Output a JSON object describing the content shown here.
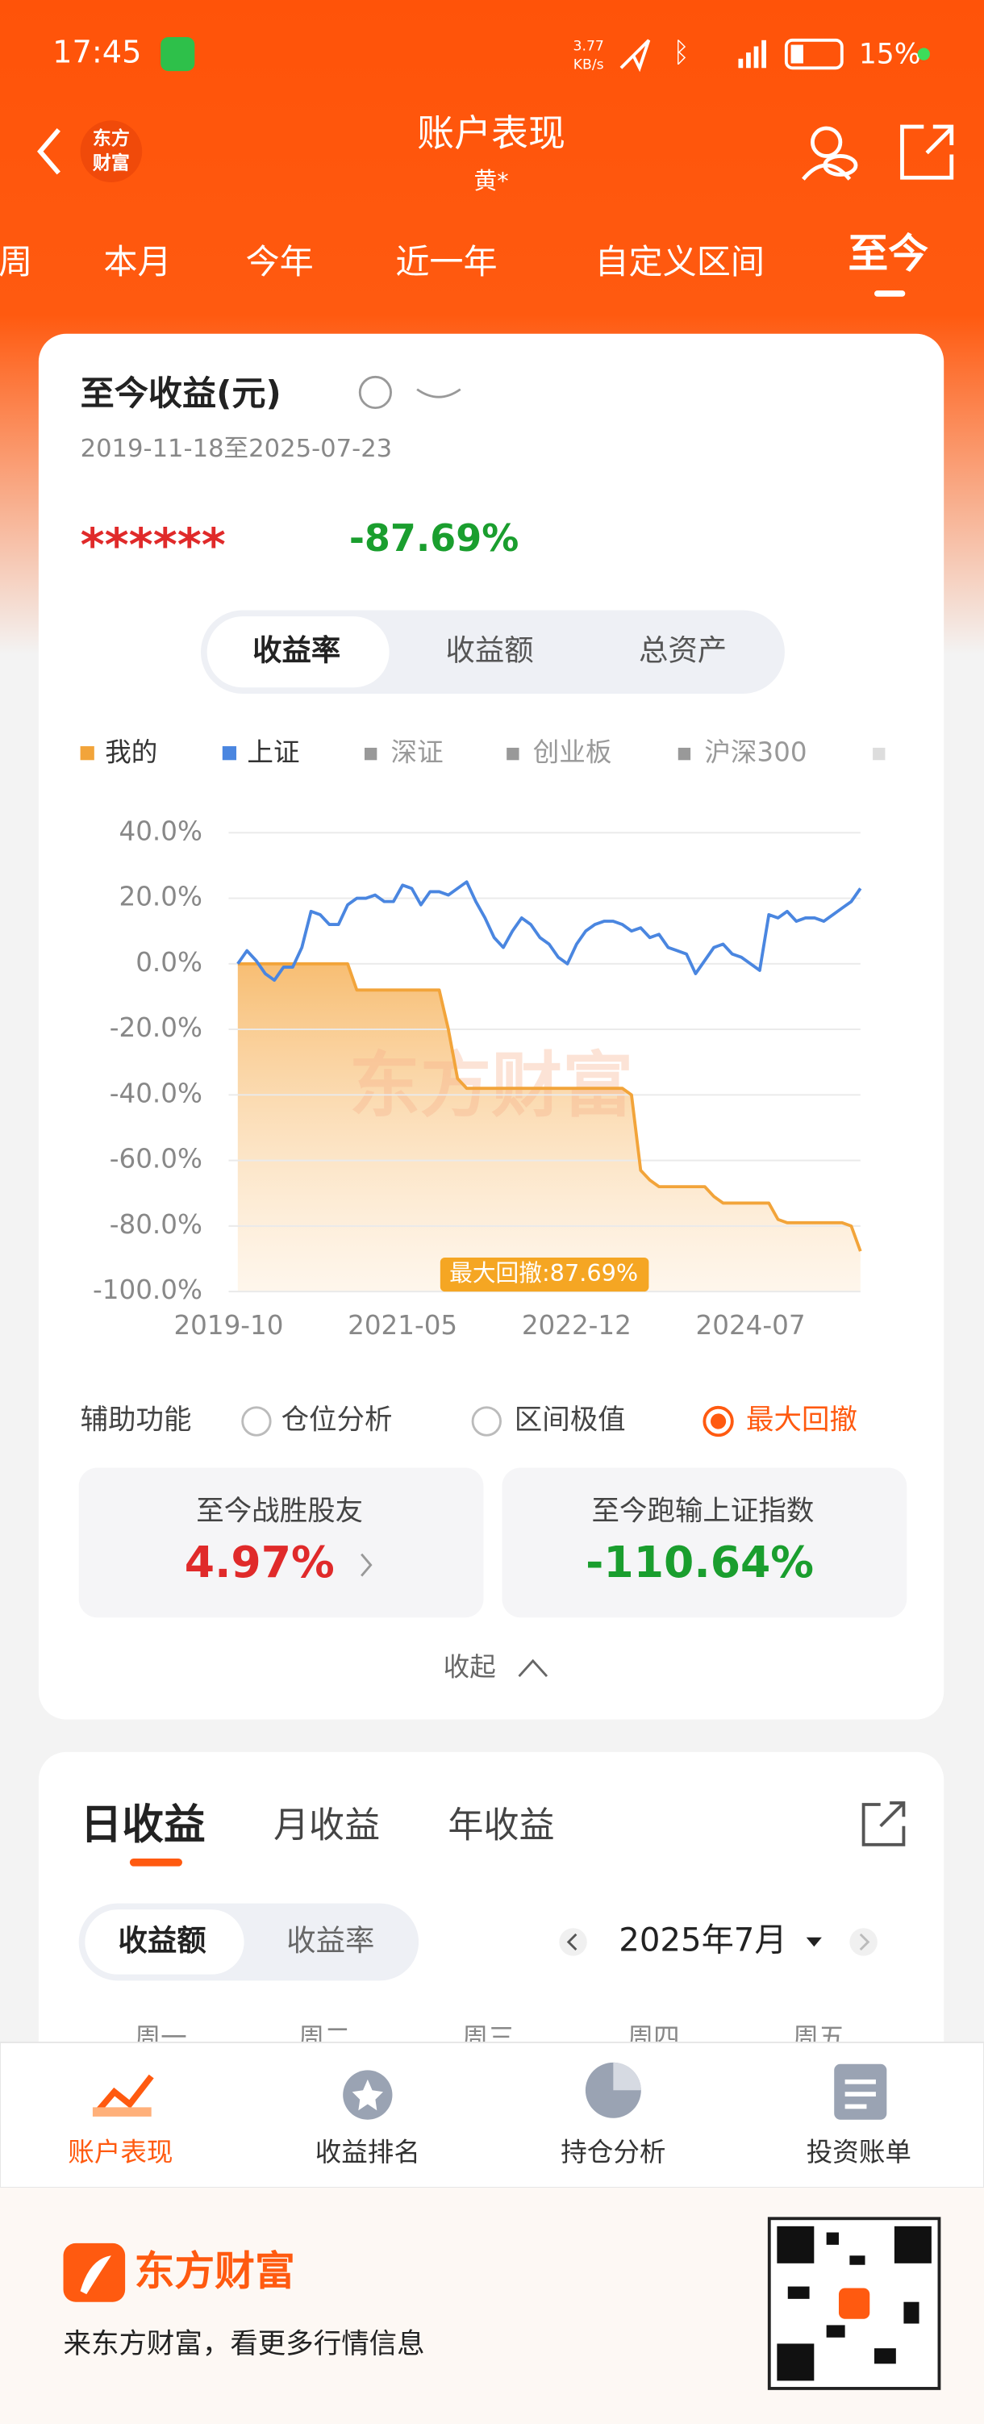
{
  "status_bar": {
    "time": "17:45",
    "network_speed": [
      "3.77",
      "KB/s"
    ],
    "battery": "15%"
  },
  "header": {
    "logo": [
      "东方",
      "财富"
    ],
    "title": "账户表现",
    "subtitle": "黄*"
  },
  "tabs": [
    "周",
    "本月",
    "今年",
    "近一年",
    "自定义区间",
    "至今"
  ],
  "summary": {
    "title": "至今收益(元)",
    "date_range": "2019-11-18至2025-07-23",
    "amount": "******",
    "rate": "-87.69%"
  },
  "segments": [
    "收益率",
    "收益额",
    "总资产"
  ],
  "chart_data": {
    "type": "line",
    "watermark": "东方财富",
    "annotation": "最大回撤:87.69%",
    "x": [
      "2019-11",
      "2019-12",
      "2020-01",
      "2020-02",
      "2020-03",
      "2020-04",
      "2020-05",
      "2020-06",
      "2020-07",
      "2020-08",
      "2020-09",
      "2020-10",
      "2020-11",
      "2020-12",
      "2021-01",
      "2021-02",
      "2021-03",
      "2021-04",
      "2021-05",
      "2021-06",
      "2021-07",
      "2021-08",
      "2021-09",
      "2021-10",
      "2021-11",
      "2021-12",
      "2022-01",
      "2022-02",
      "2022-03",
      "2022-04",
      "2022-05",
      "2022-06",
      "2022-07",
      "2022-08",
      "2022-09",
      "2022-10",
      "2022-11",
      "2022-12",
      "2023-01",
      "2023-02",
      "2023-03",
      "2023-04",
      "2023-05",
      "2023-06",
      "2023-07",
      "2023-08",
      "2023-09",
      "2023-10",
      "2023-11",
      "2023-12",
      "2024-01",
      "2024-02",
      "2024-03",
      "2024-04",
      "2024-05",
      "2024-06",
      "2024-07",
      "2024-08",
      "2024-09",
      "2024-10",
      "2024-11",
      "2024-12",
      "2025-01",
      "2025-02",
      "2025-03",
      "2025-04",
      "2025-05",
      "2025-06",
      "2025-07"
    ],
    "series": [
      {
        "name": "我的",
        "color": "#f2a43a",
        "values": [
          0,
          0,
          0,
          0,
          0,
          0,
          0,
          0,
          0,
          0,
          0,
          0,
          0,
          -8,
          -8,
          -8,
          -8,
          -8,
          -8,
          -8,
          -8,
          -8,
          -8,
          -20,
          -35,
          -38,
          -38,
          -38,
          -38,
          -38,
          -38,
          -38,
          -38,
          -38,
          -38,
          -38,
          -38,
          -38,
          -38,
          -38,
          -38,
          -38,
          -38,
          -40,
          -63,
          -66,
          -68,
          -68,
          -68,
          -68,
          -68,
          -68,
          -71,
          -73,
          -73,
          -73,
          -73,
          -73,
          -73,
          -78,
          -79,
          -79,
          -79,
          -79,
          -79,
          -79,
          -79,
          -80,
          -87.69
        ]
      },
      {
        "name": "上证",
        "color": "#4a86e0",
        "values": [
          0,
          4,
          1,
          -3,
          -5,
          -1,
          -1,
          5,
          16,
          15,
          12,
          12,
          18,
          20,
          20,
          21,
          19,
          19,
          24,
          23,
          18,
          22,
          22,
          21,
          23,
          25,
          19,
          14,
          8,
          5,
          10,
          14,
          12,
          8,
          6,
          2,
          0,
          6,
          10,
          12,
          13,
          13,
          12,
          10,
          11,
          8,
          9,
          5,
          4,
          3,
          -3,
          1,
          5,
          6,
          3,
          2,
          0,
          -2,
          15,
          14,
          16,
          13,
          14,
          14,
          13,
          15,
          17,
          19,
          23
        ]
      }
    ],
    "legend_extra": [
      "深证",
      "创业板",
      "沪深300"
    ],
    "ylim": [
      -100,
      40
    ],
    "yticks": [
      {
        "value": 40,
        "label": "40.0%"
      },
      {
        "value": 20,
        "label": "20.0%"
      },
      {
        "value": 0,
        "label": "0.0%"
      },
      {
        "value": -20,
        "label": "-20.0%"
      },
      {
        "value": -40,
        "label": "-40.0%"
      },
      {
        "value": -60,
        "label": "-60.0%"
      },
      {
        "value": -80,
        "label": "-80.0%"
      },
      {
        "value": -100,
        "label": "-100.0%"
      }
    ],
    "xticks": [
      "2019-10",
      "2021-05",
      "2022-12",
      "2024-07"
    ],
    "grid": true
  },
  "aux": {
    "label": "辅助功能",
    "options": [
      "仓位分析",
      "区间极值",
      "最大回撤"
    ]
  },
  "stats": [
    {
      "label": "至今战胜股友",
      "value": "4.97%"
    },
    {
      "label": "至今跑输上证指数",
      "value": "-110.64%"
    }
  ],
  "collapse": "收起",
  "daily": {
    "tabs": [
      "日收益",
      "月收益",
      "年收益"
    ],
    "segments": [
      "收益额",
      "收益率"
    ],
    "month": "2025年7月",
    "weekdays": [
      "周一",
      "周二",
      "周三",
      "周四",
      "周五"
    ]
  },
  "nav": [
    "账户表现",
    "收益排名",
    "持仓分析",
    "投资账单"
  ],
  "footer": {
    "brand": "东方财富",
    "slogan": "来东方财富，看更多行情信息"
  }
}
